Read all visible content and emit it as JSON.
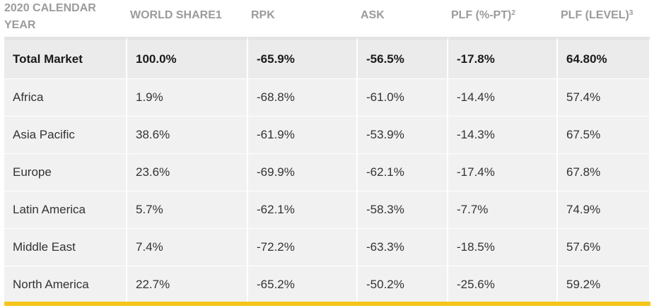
{
  "table": {
    "headers": [
      {
        "text": "2020 CALENDAR YEAR",
        "sup": ""
      },
      {
        "text": "WORLD SHARE1",
        "sup": ""
      },
      {
        "text": "RPK",
        "sup": ""
      },
      {
        "text": "ASK",
        "sup": ""
      },
      {
        "text": "PLF (%-PT)",
        "sup": "2"
      },
      {
        "text": "PLF (LEVEL)",
        "sup": "3"
      }
    ],
    "rows": [
      [
        "Total Market",
        "100.0%",
        "-65.9%",
        "-56.5%",
        "-17.8%",
        "64.80%"
      ],
      [
        "Africa",
        "1.9%",
        "-68.8%",
        "-61.0%",
        "-14.4%",
        "57.4%"
      ],
      [
        "Asia Pacific",
        "38.6%",
        "-61.9%",
        "-53.9%",
        "-14.3%",
        "67.5%"
      ],
      [
        "Europe",
        "23.6%",
        "-69.9%",
        "-62.1%",
        "-17.4%",
        "67.8%"
      ],
      [
        "Latin America",
        "5.7%",
        "-62.1%",
        "-58.3%",
        "-7.7%",
        "74.9%"
      ],
      [
        "Middle East",
        "7.4%",
        "-72.2%",
        "-63.3%",
        "-18.5%",
        "57.6%"
      ],
      [
        "North America",
        "22.7%",
        "-65.2%",
        "-50.2%",
        "-25.6%",
        "59.2%"
      ]
    ]
  },
  "colors": {
    "accent_bar": "#f5c51a",
    "header_text": "#9b9b9b",
    "cell_bg": "#f1f1f1"
  }
}
